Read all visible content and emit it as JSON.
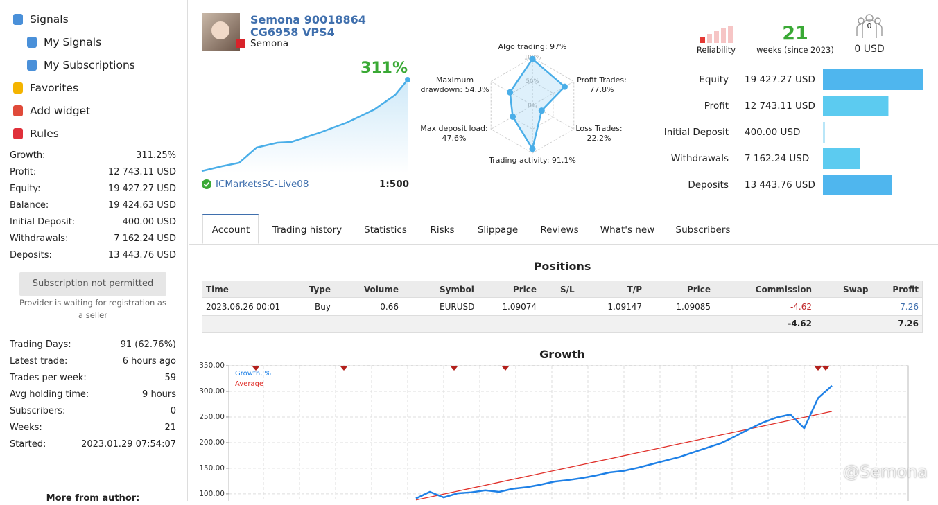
{
  "sidebar": {
    "nav": [
      "Signals",
      "My Signals",
      "My Subscriptions",
      "Favorites",
      "Add widget",
      "Rules"
    ],
    "stats": [
      [
        "Growth:",
        "311.25%"
      ],
      [
        "Profit:",
        "12 743.11 USD"
      ],
      [
        "Equity:",
        "19 427.27 USD"
      ],
      [
        "Balance:",
        "19 424.63 USD"
      ],
      [
        "Initial Deposit:",
        "400.00 USD"
      ],
      [
        "Withdrawals:",
        "7 162.24 USD"
      ],
      [
        "Deposits:",
        "13 443.76 USD"
      ]
    ],
    "button": "Subscription not permitted",
    "note": "Provider is waiting for registration as a seller",
    "stats2": [
      [
        "Trading Days:",
        "91 (62.76%)"
      ],
      [
        "Latest trade:",
        "6 hours ago"
      ],
      [
        "Trades per week:",
        "59"
      ],
      [
        "Avg holding time:",
        "9 hours"
      ],
      [
        "Subscribers:",
        "0"
      ],
      [
        "Weeks:",
        "21"
      ],
      [
        "Started:",
        "2023.01.29 07:54:07"
      ]
    ],
    "more": "More from author:"
  },
  "header": {
    "title": "Semona 90018864 CG6958 VPS4",
    "author": "Semona",
    "growth": "311%",
    "broker": "ICMarketsSC-Live08",
    "leverage": "1:500"
  },
  "radar": {
    "labels": [
      "Algo trading:",
      "Profit Trades:",
      "Loss Trades:",
      "Trading activity:",
      "Max deposit load:",
      "Maximum drawdown:"
    ],
    "values": [
      97,
      77.8,
      22.2,
      91.1,
      47.6,
      54.3
    ],
    "value_labels": [
      "97%",
      "77.8%",
      "22.2%",
      "91.1%",
      "47.6%",
      "54.3%"
    ],
    "rings": [
      {
        "value": 100,
        "label": "100%"
      },
      {
        "value": 50,
        "label": "50%"
      },
      {
        "value": 0,
        "label": "0%"
      }
    ]
  },
  "summary": {
    "reliability": "Reliability",
    "weeks": "21",
    "weeks_label": "weeks (since 2023)",
    "subscribers": "0",
    "funds": "0 USD"
  },
  "balances": {
    "labels": [
      "Equity",
      "Profit",
      "Initial Deposit",
      "Withdrawals",
      "Deposits"
    ],
    "values": [
      19427.27,
      12743.11,
      400,
      7162.24,
      13443.76
    ],
    "value_labels": [
      "19 427.27 USD",
      "12 743.11 USD",
      "400.00 USD",
      "7 162.24 USD",
      "13 443.76 USD"
    ],
    "colors": [
      "#4fb6ee",
      "#5ccbf0",
      "#b8e6f8",
      "#5ccbf0",
      "#4fb6ee"
    ]
  },
  "tabs": [
    "Account",
    "Trading history",
    "Statistics",
    "Risks",
    "Slippage",
    "Reviews",
    "What's new",
    "Subscribers"
  ],
  "positions": {
    "title": "Positions",
    "headers": [
      "Time",
      "Type",
      "Volume",
      "Symbol",
      "Price",
      "S/L",
      "T/P",
      "Price",
      "Commission",
      "Swap",
      "Profit"
    ],
    "rows": [
      {
        "time": "2023.06.26 00:01",
        "type": "Buy",
        "volume": "0.66",
        "symbol": "EURUSD",
        "price": "1.09074",
        "tp": "1.09147",
        "close_price": "1.09085",
        "commission": "-4.62",
        "profit": "7.26"
      }
    ],
    "totals": {
      "commission": "-4.62",
      "profit": "7.26"
    }
  },
  "growth_chart": {
    "type": "line",
    "title": "Growth",
    "ylim": [
      85,
      350
    ],
    "yticks": [
      {
        "value": 350,
        "label": "350.00"
      },
      {
        "value": 300,
        "label": "300.00"
      },
      {
        "value": 250,
        "label": "250.00"
      },
      {
        "value": 200,
        "label": "200.00"
      },
      {
        "value": 150,
        "label": "150.00"
      },
      {
        "value": 100,
        "label": "100.00"
      }
    ],
    "grid": true,
    "series": [
      {
        "name": "Growth, %",
        "color": "#1e80e6",
        "values": [
          91,
          104,
          93,
          101,
          103,
          107,
          104,
          110,
          113,
          118,
          124,
          127,
          131,
          136,
          142,
          145,
          151,
          158,
          165,
          172,
          181,
          190,
          199,
          212,
          226,
          239,
          249,
          255,
          228,
          287,
          311
        ]
      },
      {
        "name": "Average",
        "color": "#e0302a",
        "values": [
          88,
          93.8,
          99.5,
          105.3,
          111.1,
          116.8,
          122.6,
          128.4,
          134.1,
          139.9,
          145.7,
          151.4,
          157.2,
          163,
          168.7,
          174.5,
          180.3,
          186,
          191.8,
          197.6,
          203.3,
          209.1,
          214.9,
          220.6,
          226.4,
          232.2,
          237.9,
          243.7,
          249.5,
          255.2,
          261
        ]
      }
    ]
  },
  "watermark": "@Semona"
}
